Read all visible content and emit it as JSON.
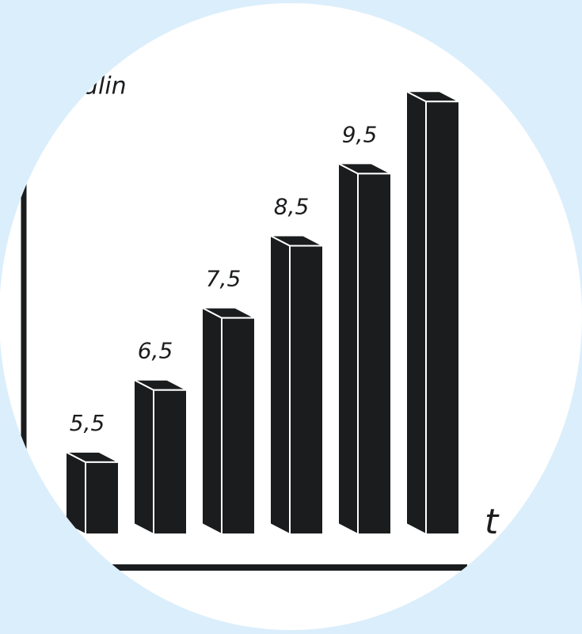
{
  "chart_data": {
    "type": "bar3d",
    "ylabel": "insulin",
    "xlabel": "t",
    "values": [
      5.5,
      6.5,
      7.5,
      8.5,
      9.5,
      10.5
    ],
    "value_labels": [
      "5,5",
      "6,5",
      "7,5",
      "8,5",
      "9,5",
      null
    ],
    "color": "#1a1c1e",
    "ylim": [
      4.5,
      10.7
    ]
  }
}
